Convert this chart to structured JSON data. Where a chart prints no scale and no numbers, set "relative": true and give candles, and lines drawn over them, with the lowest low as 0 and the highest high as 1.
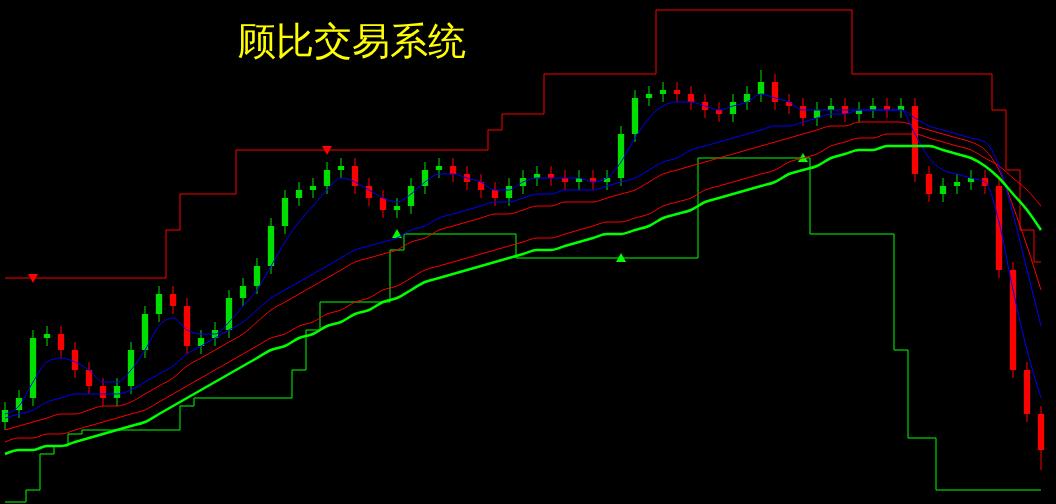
{
  "chart_data": {
    "type": "candlestick",
    "title": "顾比交易系统",
    "relative": true,
    "categories": [
      null,
      null,
      null,
      null,
      null,
      null,
      null,
      null,
      null,
      null,
      null,
      null,
      null,
      null,
      null,
      null,
      null,
      null,
      null,
      null,
      null,
      null,
      null,
      null,
      null,
      null,
      null,
      null,
      null,
      null,
      null,
      null,
      null,
      null,
      null,
      null,
      null,
      null,
      null,
      null,
      null,
      null,
      null,
      null,
      null,
      null,
      null,
      null,
      null,
      null,
      null,
      null,
      null,
      null,
      null,
      null,
      null,
      null,
      null,
      null,
      null,
      null,
      null,
      null,
      null,
      null,
      null,
      null,
      null,
      null,
      null,
      null,
      null,
      null,
      null
    ],
    "ohlc": [
      [
        0.12,
        0.17,
        0.1,
        0.15
      ],
      [
        0.15,
        0.2,
        0.13,
        0.18
      ],
      [
        0.18,
        0.35,
        0.16,
        0.33
      ],
      [
        0.33,
        0.36,
        0.31,
        0.34
      ],
      [
        0.34,
        0.36,
        0.28,
        0.3
      ],
      [
        0.3,
        0.32,
        0.23,
        0.25
      ],
      [
        0.25,
        0.27,
        0.19,
        0.21
      ],
      [
        0.21,
        0.23,
        0.16,
        0.18
      ],
      [
        0.18,
        0.23,
        0.16,
        0.21
      ],
      [
        0.21,
        0.32,
        0.19,
        0.3
      ],
      [
        0.3,
        0.41,
        0.28,
        0.39
      ],
      [
        0.39,
        0.46,
        0.37,
        0.44
      ],
      [
        0.44,
        0.46,
        0.39,
        0.41
      ],
      [
        0.41,
        0.43,
        0.29,
        0.31
      ],
      [
        0.31,
        0.35,
        0.29,
        0.33
      ],
      [
        0.33,
        0.37,
        0.31,
        0.35
      ],
      [
        0.35,
        0.45,
        0.33,
        0.43
      ],
      [
        0.43,
        0.48,
        0.41,
        0.46
      ],
      [
        0.46,
        0.53,
        0.44,
        0.51
      ],
      [
        0.51,
        0.63,
        0.49,
        0.61
      ],
      [
        0.61,
        0.7,
        0.59,
        0.68
      ],
      [
        0.68,
        0.72,
        0.66,
        0.7
      ],
      [
        0.7,
        0.73,
        0.68,
        0.71
      ],
      [
        0.71,
        0.77,
        0.69,
        0.75
      ],
      [
        0.75,
        0.78,
        0.73,
        0.76
      ],
      [
        0.76,
        0.78,
        0.69,
        0.71
      ],
      [
        0.71,
        0.73,
        0.66,
        0.68
      ],
      [
        0.68,
        0.7,
        0.63,
        0.65
      ],
      [
        0.65,
        0.68,
        0.63,
        0.66
      ],
      [
        0.66,
        0.73,
        0.64,
        0.71
      ],
      [
        0.71,
        0.77,
        0.69,
        0.75
      ],
      [
        0.75,
        0.78,
        0.73,
        0.76
      ],
      [
        0.76,
        0.78,
        0.72,
        0.74
      ],
      [
        0.74,
        0.76,
        0.7,
        0.72
      ],
      [
        0.72,
        0.74,
        0.68,
        0.7
      ],
      [
        0.7,
        0.72,
        0.66,
        0.68
      ],
      [
        0.68,
        0.73,
        0.66,
        0.71
      ],
      [
        0.71,
        0.75,
        0.69,
        0.73
      ],
      [
        0.73,
        0.76,
        0.71,
        0.74
      ],
      [
        0.74,
        0.76,
        0.71,
        0.73
      ],
      [
        0.73,
        0.75,
        0.7,
        0.72
      ],
      [
        0.72,
        0.75,
        0.7,
        0.73
      ],
      [
        0.73,
        0.75,
        0.7,
        0.72
      ],
      [
        0.72,
        0.75,
        0.7,
        0.73
      ],
      [
        0.73,
        0.86,
        0.71,
        0.84
      ],
      [
        0.84,
        0.95,
        0.82,
        0.93
      ],
      [
        0.93,
        0.96,
        0.91,
        0.94
      ],
      [
        0.94,
        0.97,
        0.92,
        0.95
      ],
      [
        0.95,
        0.97,
        0.92,
        0.94
      ],
      [
        0.94,
        0.96,
        0.9,
        0.92
      ],
      [
        0.92,
        0.94,
        0.88,
        0.9
      ],
      [
        0.9,
        0.92,
        0.87,
        0.89
      ],
      [
        0.89,
        0.94,
        0.87,
        0.92
      ],
      [
        0.92,
        0.96,
        0.9,
        0.94
      ],
      [
        0.94,
        1,
        0.92,
        0.97
      ],
      [
        0.97,
        0.99,
        0.9,
        0.92
      ],
      [
        0.92,
        0.94,
        0.89,
        0.91
      ],
      [
        0.91,
        0.93,
        0.86,
        0.88
      ],
      [
        0.88,
        0.92,
        0.86,
        0.9
      ],
      [
        0.9,
        0.93,
        0.88,
        0.91
      ],
      [
        0.91,
        0.93,
        0.87,
        0.89
      ],
      [
        0.89,
        0.92,
        0.87,
        0.9
      ],
      [
        0.9,
        0.93,
        0.88,
        0.91
      ],
      [
        0.91,
        0.93,
        0.88,
        0.9
      ],
      [
        0.9,
        0.93,
        0.88,
        0.91
      ],
      [
        0.91,
        0.93,
        0.72,
        0.74
      ],
      [
        0.74,
        0.76,
        0.67,
        0.69
      ],
      [
        0.69,
        0.73,
        0.67,
        0.71
      ],
      [
        0.71,
        0.74,
        0.69,
        0.72
      ],
      [
        0.72,
        0.75,
        0.7,
        0.73
      ],
      [
        0.73,
        0.75,
        0.69,
        0.71
      ],
      [
        0.71,
        0.73,
        0.48,
        0.5
      ],
      [
        0.5,
        0.52,
        0.23,
        0.25
      ],
      [
        0.25,
        0.27,
        0.12,
        0.14
      ],
      [
        0.14,
        0.16,
        0,
        0.05
      ]
    ],
    "series": [
      {
        "type": "step",
        "color": "#ff0000",
        "values": [
          0.48,
          0.48,
          0.48,
          0.48,
          0.48,
          0.48,
          0.48,
          0.48,
          0.48,
          0.48,
          0.48,
          0.48,
          0.6,
          0.69,
          0.69,
          0.69,
          0.69,
          0.8,
          0.8,
          0.8,
          0.8,
          0.8,
          0.8,
          0.8,
          0.8,
          0.8,
          0.8,
          0.8,
          0.8,
          0.8,
          0.8,
          0.8,
          0.8,
          0.8,
          0.8,
          0.85,
          0.89,
          0.89,
          0.89,
          0.99,
          0.99,
          0.99,
          0.99,
          0.99,
          0.99,
          0.99,
          0.99,
          1.15,
          1.15,
          1.15,
          1.15,
          1.15,
          1.15,
          1.15,
          1.15,
          1.15,
          1.15,
          1.15,
          1.15,
          1.15,
          1.15,
          0.99,
          0.99,
          0.99,
          0.99,
          0.99,
          0.99,
          0.99,
          0.99,
          0.99,
          0.99,
          0.9,
          0.75,
          0.6,
          0.52
        ]
      },
      {
        "type": "step",
        "color": "#00ff00",
        "values": [
          -0.08,
          -0.08,
          -0.05,
          0.04,
          0.06,
          0.09,
          0.1,
          0.1,
          0.1,
          0.1,
          0.1,
          0.1,
          0.1,
          0.16,
          0.18,
          0.18,
          0.18,
          0.18,
          0.18,
          0.18,
          0.18,
          0.25,
          0.35,
          0.42,
          0.42,
          0.42,
          0.42,
          0.42,
          0.55,
          0.59,
          0.59,
          0.59,
          0.59,
          0.59,
          0.59,
          0.59,
          0.59,
          0.53,
          0.53,
          0.53,
          0.53,
          0.53,
          0.53,
          0.53,
          0.53,
          0.53,
          0.53,
          0.53,
          0.53,
          0.53,
          0.78,
          0.78,
          0.78,
          0.78,
          0.78,
          0.78,
          0.78,
          0.78,
          0.59,
          0.59,
          0.59,
          0.59,
          0.59,
          0.59,
          0.3,
          0.08,
          0.08,
          -0.05,
          -0.05,
          -0.05,
          -0.05,
          -0.05,
          -0.05,
          -0.05,
          -0.05
        ]
      },
      {
        "type": "line",
        "color": "#ff0000",
        "values": [
          0.07,
          0.08,
          0.08,
          0.09,
          0.09,
          0.1,
          0.11,
          0.12,
          0.13,
          0.14,
          0.15,
          0.17,
          0.19,
          0.21,
          0.23,
          0.25,
          0.27,
          0.29,
          0.31,
          0.33,
          0.34,
          0.36,
          0.37,
          0.39,
          0.4,
          0.42,
          0.43,
          0.45,
          0.46,
          0.48,
          0.5,
          0.51,
          0.52,
          0.53,
          0.54,
          0.55,
          0.56,
          0.57,
          0.58,
          0.58,
          0.59,
          0.6,
          0.61,
          0.62,
          0.62,
          0.63,
          0.64,
          0.66,
          0.67,
          0.68,
          0.7,
          0.71,
          0.72,
          0.73,
          0.74,
          0.75,
          0.77,
          0.78,
          0.79,
          0.81,
          0.82,
          0.83,
          0.83,
          0.84,
          0.84,
          0.84,
          0.83,
          0.82,
          0.81,
          0.8,
          0.78,
          0.76,
          0.73,
          0.7,
          0.66
        ]
      },
      {
        "type": "line",
        "color": "#ff0000",
        "values": [
          0.1,
          0.11,
          0.12,
          0.13,
          0.14,
          0.14,
          0.15,
          0.16,
          0.16,
          0.17,
          0.19,
          0.21,
          0.23,
          0.26,
          0.28,
          0.3,
          0.32,
          0.34,
          0.37,
          0.4,
          0.42,
          0.44,
          0.46,
          0.48,
          0.5,
          0.52,
          0.53,
          0.54,
          0.55,
          0.57,
          0.58,
          0.6,
          0.61,
          0.62,
          0.63,
          0.64,
          0.64,
          0.65,
          0.66,
          0.66,
          0.67,
          0.67,
          0.67,
          0.68,
          0.69,
          0.7,
          0.72,
          0.74,
          0.75,
          0.76,
          0.77,
          0.78,
          0.79,
          0.8,
          0.81,
          0.82,
          0.83,
          0.84,
          0.85,
          0.86,
          0.86,
          0.87,
          0.87,
          0.87,
          0.87,
          0.86,
          0.85,
          0.84,
          0.83,
          0.82,
          0.8,
          0.75,
          0.66,
          0.56,
          0.45
        ]
      },
      {
        "type": "line",
        "color": "#0000ff",
        "values": [
          0.13,
          0.14,
          0.15,
          0.17,
          0.18,
          0.19,
          0.19,
          0.19,
          0.19,
          0.2,
          0.22,
          0.24,
          0.26,
          0.29,
          0.31,
          0.33,
          0.35,
          0.37,
          0.4,
          0.43,
          0.45,
          0.47,
          0.49,
          0.51,
          0.53,
          0.55,
          0.56,
          0.57,
          0.58,
          0.6,
          0.61,
          0.63,
          0.64,
          0.65,
          0.66,
          0.67,
          0.67,
          0.68,
          0.69,
          0.69,
          0.7,
          0.7,
          0.7,
          0.71,
          0.72,
          0.73,
          0.75,
          0.77,
          0.78,
          0.8,
          0.81,
          0.82,
          0.83,
          0.84,
          0.85,
          0.86,
          0.86,
          0.87,
          0.88,
          0.89,
          0.89,
          0.9,
          0.9,
          0.9,
          0.9,
          0.88,
          0.86,
          0.85,
          0.84,
          0.83,
          0.82,
          0.76,
          0.64,
          0.5,
          0.36
        ]
      },
      {
        "type": "line",
        "color": "#0000ff",
        "values": [
          0.14,
          0.16,
          0.22,
          0.27,
          0.28,
          0.27,
          0.25,
          0.22,
          0.22,
          0.25,
          0.3,
          0.36,
          0.38,
          0.35,
          0.34,
          0.34,
          0.37,
          0.41,
          0.45,
          0.51,
          0.57,
          0.62,
          0.66,
          0.7,
          0.73,
          0.72,
          0.7,
          0.68,
          0.67,
          0.69,
          0.72,
          0.74,
          0.74,
          0.73,
          0.72,
          0.7,
          0.7,
          0.72,
          0.73,
          0.73,
          0.73,
          0.73,
          0.72,
          0.73,
          0.77,
          0.83,
          0.88,
          0.91,
          0.92,
          0.92,
          0.91,
          0.9,
          0.91,
          0.92,
          0.94,
          0.93,
          0.92,
          0.9,
          0.9,
          0.9,
          0.9,
          0.9,
          0.9,
          0.9,
          0.9,
          0.84,
          0.78,
          0.75,
          0.74,
          0.73,
          0.72,
          0.62,
          0.45,
          0.3,
          0.18
        ]
      },
      {
        "type": "line",
        "color": "#00ff00",
        "values": [
          0.04,
          0.05,
          0.05,
          0.06,
          0.06,
          0.07,
          0.08,
          0.09,
          0.1,
          0.11,
          0.12,
          0.14,
          0.16,
          0.18,
          0.2,
          0.22,
          0.24,
          0.26,
          0.28,
          0.3,
          0.31,
          0.33,
          0.34,
          0.36,
          0.37,
          0.39,
          0.4,
          0.42,
          0.43,
          0.45,
          0.47,
          0.48,
          0.49,
          0.5,
          0.51,
          0.52,
          0.53,
          0.54,
          0.55,
          0.55,
          0.56,
          0.57,
          0.58,
          0.59,
          0.59,
          0.6,
          0.61,
          0.63,
          0.64,
          0.65,
          0.67,
          0.68,
          0.69,
          0.7,
          0.71,
          0.72,
          0.74,
          0.75,
          0.76,
          0.78,
          0.79,
          0.8,
          0.8,
          0.81,
          0.81,
          0.81,
          0.81,
          0.8,
          0.79,
          0.78,
          0.76,
          0.73,
          0.69,
          0.65,
          0.6
        ]
      },
      {
        "type": "scatter",
        "color": "#ff0000",
        "marker": "triangle",
        "values": [
          null,
          null,
          0.48,
          null,
          null,
          null,
          null,
          null,
          null,
          null,
          null,
          null,
          null,
          null,
          null,
          null,
          null,
          null,
          null,
          null,
          null,
          null,
          null,
          0.8,
          null,
          null,
          null,
          null,
          null,
          null,
          null,
          null,
          null,
          null,
          null,
          null,
          null,
          null,
          null,
          null,
          null,
          null,
          null,
          null,
          null,
          null,
          null,
          null,
          null,
          null,
          null,
          null,
          null,
          null,
          null,
          null,
          null,
          null,
          null,
          null,
          null,
          null,
          null,
          null,
          null,
          null,
          null,
          null,
          null,
          null,
          null,
          null,
          null,
          null,
          null
        ]
      },
      {
        "type": "scatter",
        "color": "#00ff00",
        "marker": "triangle",
        "values": [
          null,
          null,
          null,
          null,
          null,
          null,
          null,
          null,
          null,
          null,
          null,
          null,
          null,
          null,
          null,
          null,
          null,
          null,
          null,
          null,
          null,
          null,
          null,
          null,
          null,
          null,
          null,
          null,
          0.59,
          null,
          null,
          null,
          null,
          null,
          null,
          null,
          null,
          null,
          null,
          null,
          null,
          null,
          null,
          null,
          0.53,
          null,
          null,
          null,
          null,
          null,
          null,
          null,
          null,
          null,
          null,
          null,
          null,
          0.78,
          null,
          null,
          null,
          null,
          null,
          null,
          null,
          null,
          null,
          null,
          null,
          null,
          null,
          null,
          null,
          null,
          null
        ]
      }
    ]
  }
}
